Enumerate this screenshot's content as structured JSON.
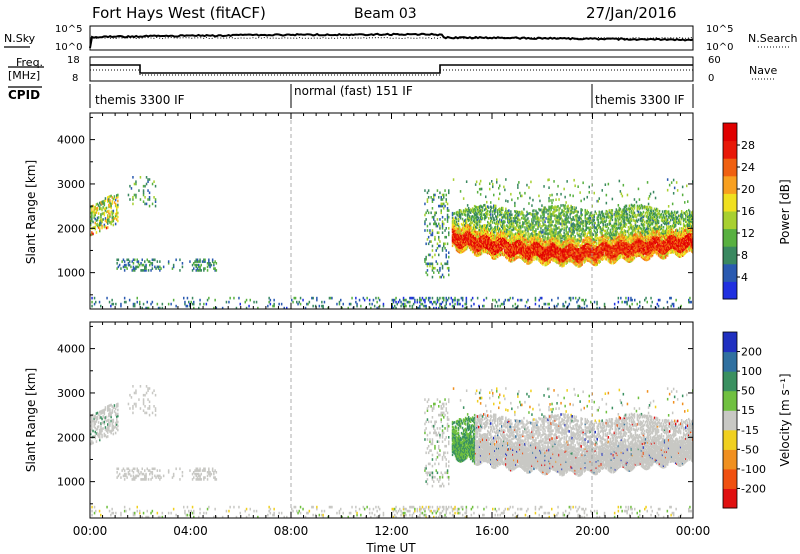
{
  "header": {
    "radar": "Fort Hays West (fitACF)",
    "beam": "Beam 03",
    "date": "27/Jan/2016"
  },
  "noise_panel": {
    "left_label": "N.Sky",
    "right_label": "N.Search",
    "left_ticks": [
      "10^5",
      "10^0"
    ],
    "right_ticks": [
      "10^5",
      "10^0"
    ]
  },
  "freq_panel": {
    "left_label_line1": "Freq.",
    "left_label_line2": "[MHz]",
    "left_ticks": [
      "18",
      "8"
    ],
    "right_ticks": [
      "60",
      "0"
    ],
    "right_label": "Nave"
  },
  "cpid": {
    "label": "CPID",
    "segments": [
      {
        "name": "themis 3300 IF",
        "start_h": 0,
        "end_h": 8
      },
      {
        "name": "normal (fast) 151 IF",
        "start_h": 8,
        "end_h": 20
      },
      {
        "name": "themis 3300 IF",
        "start_h": 20,
        "end_h": 24
      }
    ]
  },
  "chart_data": [
    {
      "type": "heatmap",
      "name": "power",
      "ylabel": "Slant Range [km]",
      "xlabel": "",
      "ylim": [
        180,
        4600
      ],
      "xlim_hours": [
        0,
        24
      ],
      "yticks": [
        "1000",
        "2000",
        "3000",
        "4000"
      ],
      "colorbar": {
        "label": "Power [dB]",
        "ticks": [
          "4",
          "8",
          "12",
          "16",
          "20",
          "24",
          "28"
        ],
        "range": [
          0,
          32
        ],
        "colors": [
          "#2030e0",
          "#2a5ab0",
          "#3a8860",
          "#58b040",
          "#a8d030",
          "#f0e020",
          "#f8a020",
          "#f06010",
          "#e81808",
          "#e00000"
        ]
      }
    },
    {
      "type": "heatmap",
      "name": "velocity",
      "ylabel": "Slant Range [km]",
      "xlabel": "Time UT",
      "ylim": [
        180,
        4600
      ],
      "xlim_hours": [
        0,
        24
      ],
      "yticks": [
        "1000",
        "2000",
        "3000",
        "4000"
      ],
      "xticks": [
        "00:00",
        "04:00",
        "08:00",
        "12:00",
        "16:00",
        "20:00",
        "00:00"
      ],
      "colorbar": {
        "label": "Velocity [m s⁻¹]",
        "ticks": [
          "200",
          "100",
          "50",
          "15",
          "-15",
          "-50",
          "-100",
          "-200"
        ],
        "colors": [
          "#2030c0",
          "#3070a0",
          "#3a9060",
          "#70c040",
          "#c8c8c4",
          "#f0d020",
          "#f09020",
          "#f05010",
          "#e01010"
        ]
      }
    }
  ]
}
